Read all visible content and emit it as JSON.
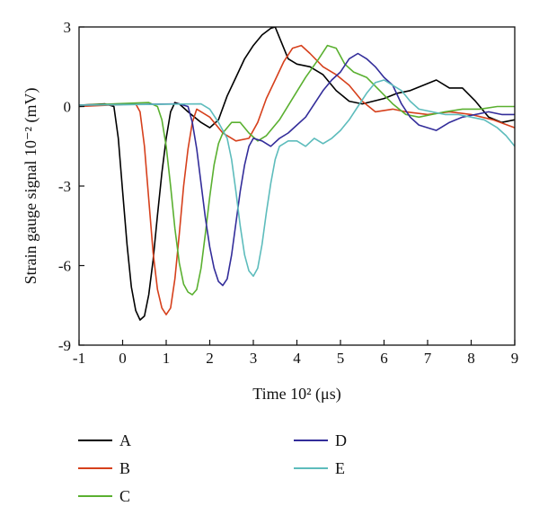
{
  "chart_data": {
    "type": "line",
    "title": "",
    "xlabel": "Time 10² (μs)",
    "ylabel": "Strain gauge signal 10⁻² (mV)",
    "xlim": [
      -1,
      9
    ],
    "ylim": [
      -9,
      3
    ],
    "xticks": [
      -1,
      0,
      1,
      2,
      3,
      4,
      5,
      6,
      7,
      8,
      9
    ],
    "yticks": [
      -9,
      -6,
      -3,
      0,
      3
    ],
    "grid": false,
    "legend_position": "bottom",
    "series": [
      {
        "name": "A",
        "color": "#000000",
        "points": [
          [
            -1,
            0.05
          ],
          [
            -0.4,
            0.1
          ],
          [
            -0.2,
            0
          ],
          [
            -0.1,
            -1.2
          ],
          [
            0,
            -3.2
          ],
          [
            0.1,
            -5.2
          ],
          [
            0.2,
            -6.8
          ],
          [
            0.3,
            -7.7
          ],
          [
            0.4,
            -8.05
          ],
          [
            0.5,
            -7.9
          ],
          [
            0.6,
            -7.1
          ],
          [
            0.7,
            -5.8
          ],
          [
            0.8,
            -4.1
          ],
          [
            0.9,
            -2.5
          ],
          [
            1.0,
            -1.2
          ],
          [
            1.1,
            -0.2
          ],
          [
            1.2,
            0.15
          ],
          [
            1.3,
            0.1
          ],
          [
            1.5,
            -0.2
          ],
          [
            1.8,
            -0.6
          ],
          [
            2.0,
            -0.8
          ],
          [
            2.2,
            -0.5
          ],
          [
            2.4,
            0.4
          ],
          [
            2.6,
            1.1
          ],
          [
            2.8,
            1.8
          ],
          [
            3.0,
            2.3
          ],
          [
            3.2,
            2.7
          ],
          [
            3.4,
            2.95
          ],
          [
            3.5,
            3.0
          ],
          [
            3.6,
            2.6
          ],
          [
            3.8,
            1.8
          ],
          [
            4.0,
            1.6
          ],
          [
            4.3,
            1.5
          ],
          [
            4.6,
            1.2
          ],
          [
            4.9,
            0.6
          ],
          [
            5.2,
            0.2
          ],
          [
            5.5,
            0.1
          ],
          [
            6.0,
            0.3
          ],
          [
            6.3,
            0.5
          ],
          [
            6.6,
            0.6
          ],
          [
            6.9,
            0.8
          ],
          [
            7.2,
            1.0
          ],
          [
            7.5,
            0.7
          ],
          [
            7.8,
            0.7
          ],
          [
            8.1,
            0.2
          ],
          [
            8.4,
            -0.4
          ],
          [
            8.7,
            -0.6
          ],
          [
            9.0,
            -0.5
          ]
        ]
      },
      {
        "name": "B",
        "color": "#d6401c",
        "points": [
          [
            -1,
            0.0
          ],
          [
            0.3,
            0.1
          ],
          [
            0.4,
            -0.2
          ],
          [
            0.5,
            -1.5
          ],
          [
            0.6,
            -3.5
          ],
          [
            0.7,
            -5.5
          ],
          [
            0.8,
            -6.9
          ],
          [
            0.9,
            -7.6
          ],
          [
            1.0,
            -7.85
          ],
          [
            1.1,
            -7.6
          ],
          [
            1.2,
            -6.5
          ],
          [
            1.3,
            -4.8
          ],
          [
            1.4,
            -3.0
          ],
          [
            1.5,
            -1.6
          ],
          [
            1.6,
            -0.6
          ],
          [
            1.7,
            -0.1
          ],
          [
            2.0,
            -0.4
          ],
          [
            2.3,
            -1.0
          ],
          [
            2.6,
            -1.3
          ],
          [
            2.9,
            -1.2
          ],
          [
            3.1,
            -0.6
          ],
          [
            3.3,
            0.3
          ],
          [
            3.5,
            1.0
          ],
          [
            3.7,
            1.7
          ],
          [
            3.9,
            2.2
          ],
          [
            4.1,
            2.3
          ],
          [
            4.3,
            2.0
          ],
          [
            4.6,
            1.5
          ],
          [
            4.9,
            1.2
          ],
          [
            5.2,
            0.8
          ],
          [
            5.5,
            0.2
          ],
          [
            5.8,
            -0.2
          ],
          [
            6.2,
            -0.1
          ],
          [
            6.5,
            -0.2
          ],
          [
            7.0,
            -0.3
          ],
          [
            7.5,
            -0.2
          ],
          [
            8.0,
            -0.3
          ],
          [
            8.5,
            -0.5
          ],
          [
            9.0,
            -0.8
          ]
        ]
      },
      {
        "name": "C",
        "color": "#5ab030",
        "points": [
          [
            -1,
            0.05
          ],
          [
            0.6,
            0.15
          ],
          [
            0.8,
            0.0
          ],
          [
            0.9,
            -0.5
          ],
          [
            1.0,
            -1.5
          ],
          [
            1.1,
            -3.0
          ],
          [
            1.2,
            -4.6
          ],
          [
            1.3,
            -5.9
          ],
          [
            1.4,
            -6.7
          ],
          [
            1.5,
            -7.0
          ],
          [
            1.6,
            -7.1
          ],
          [
            1.7,
            -6.9
          ],
          [
            1.8,
            -6.1
          ],
          [
            1.9,
            -4.8
          ],
          [
            2.0,
            -3.4
          ],
          [
            2.1,
            -2.2
          ],
          [
            2.2,
            -1.4
          ],
          [
            2.3,
            -1.0
          ],
          [
            2.5,
            -0.6
          ],
          [
            2.7,
            -0.6
          ],
          [
            2.9,
            -1.0
          ],
          [
            3.1,
            -1.3
          ],
          [
            3.3,
            -1.1
          ],
          [
            3.6,
            -0.5
          ],
          [
            3.9,
            0.3
          ],
          [
            4.2,
            1.1
          ],
          [
            4.5,
            1.8
          ],
          [
            4.7,
            2.3
          ],
          [
            4.9,
            2.2
          ],
          [
            5.1,
            1.6
          ],
          [
            5.3,
            1.3
          ],
          [
            5.6,
            1.1
          ],
          [
            5.9,
            0.6
          ],
          [
            6.2,
            0.1
          ],
          [
            6.5,
            -0.3
          ],
          [
            6.8,
            -0.4
          ],
          [
            7.1,
            -0.3
          ],
          [
            7.4,
            -0.2
          ],
          [
            7.8,
            -0.1
          ],
          [
            8.2,
            -0.1
          ],
          [
            8.6,
            0.0
          ],
          [
            9.0,
            0.0
          ]
        ]
      },
      {
        "name": "D",
        "color": "#332d9a",
        "points": [
          [
            -1,
            0.05
          ],
          [
            1.3,
            0.1
          ],
          [
            1.5,
            0.0
          ],
          [
            1.6,
            -0.6
          ],
          [
            1.7,
            -1.6
          ],
          [
            1.8,
            -2.9
          ],
          [
            1.9,
            -4.2
          ],
          [
            2.0,
            -5.3
          ],
          [
            2.1,
            -6.1
          ],
          [
            2.2,
            -6.6
          ],
          [
            2.3,
            -6.75
          ],
          [
            2.4,
            -6.5
          ],
          [
            2.5,
            -5.6
          ],
          [
            2.6,
            -4.4
          ],
          [
            2.7,
            -3.2
          ],
          [
            2.8,
            -2.2
          ],
          [
            2.9,
            -1.5
          ],
          [
            3.0,
            -1.2
          ],
          [
            3.2,
            -1.3
          ],
          [
            3.4,
            -1.5
          ],
          [
            3.6,
            -1.2
          ],
          [
            3.8,
            -1.0
          ],
          [
            4.0,
            -0.7
          ],
          [
            4.2,
            -0.4
          ],
          [
            4.4,
            0.1
          ],
          [
            4.6,
            0.6
          ],
          [
            4.8,
            1.0
          ],
          [
            5.0,
            1.3
          ],
          [
            5.2,
            1.8
          ],
          [
            5.4,
            2.0
          ],
          [
            5.6,
            1.8
          ],
          [
            5.8,
            1.5
          ],
          [
            6.0,
            1.1
          ],
          [
            6.2,
            0.8
          ],
          [
            6.4,
            0.1
          ],
          [
            6.6,
            -0.4
          ],
          [
            6.8,
            -0.7
          ],
          [
            7.0,
            -0.8
          ],
          [
            7.2,
            -0.9
          ],
          [
            7.5,
            -0.6
          ],
          [
            7.8,
            -0.4
          ],
          [
            8.1,
            -0.3
          ],
          [
            8.4,
            -0.2
          ],
          [
            8.7,
            -0.3
          ],
          [
            9.0,
            -0.3
          ]
        ]
      },
      {
        "name": "E",
        "color": "#5dbcbc",
        "points": [
          [
            -1,
            0.05
          ],
          [
            1.8,
            0.1
          ],
          [
            2.0,
            -0.1
          ],
          [
            2.2,
            -0.6
          ],
          [
            2.4,
            -1.2
          ],
          [
            2.5,
            -2.0
          ],
          [
            2.6,
            -3.2
          ],
          [
            2.7,
            -4.5
          ],
          [
            2.8,
            -5.6
          ],
          [
            2.9,
            -6.2
          ],
          [
            3.0,
            -6.4
          ],
          [
            3.1,
            -6.1
          ],
          [
            3.2,
            -5.2
          ],
          [
            3.3,
            -4.0
          ],
          [
            3.4,
            -2.9
          ],
          [
            3.5,
            -2.0
          ],
          [
            3.6,
            -1.5
          ],
          [
            3.8,
            -1.3
          ],
          [
            4.0,
            -1.3
          ],
          [
            4.2,
            -1.5
          ],
          [
            4.4,
            -1.2
          ],
          [
            4.6,
            -1.4
          ],
          [
            4.8,
            -1.2
          ],
          [
            5.0,
            -0.9
          ],
          [
            5.2,
            -0.5
          ],
          [
            5.4,
            0.0
          ],
          [
            5.6,
            0.5
          ],
          [
            5.8,
            0.9
          ],
          [
            6.0,
            1.0
          ],
          [
            6.2,
            0.8
          ],
          [
            6.4,
            0.6
          ],
          [
            6.6,
            0.2
          ],
          [
            6.8,
            -0.1
          ],
          [
            7.1,
            -0.2
          ],
          [
            7.4,
            -0.3
          ],
          [
            7.7,
            -0.3
          ],
          [
            8.0,
            -0.4
          ],
          [
            8.3,
            -0.5
          ],
          [
            8.6,
            -0.8
          ],
          [
            8.8,
            -1.1
          ],
          [
            9.0,
            -1.5
          ]
        ]
      }
    ]
  }
}
